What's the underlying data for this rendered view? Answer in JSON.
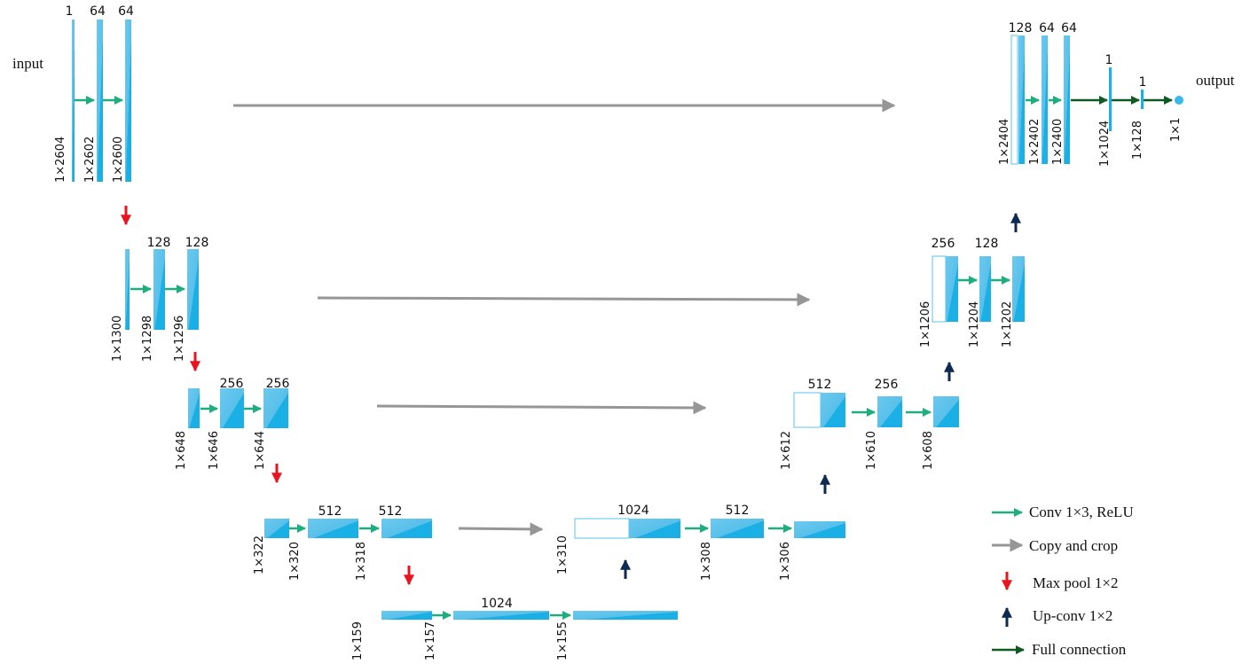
{
  "labels": {
    "input": "input",
    "output": "output"
  },
  "colors": {
    "block": "#5bc3ec",
    "block_dark": "#1ab0e6",
    "conv": "#1eae7e",
    "copy": "#969696",
    "pool": "#e8141e",
    "upconv": "#0e2a52",
    "full": "#0f5a23"
  },
  "legend": [
    {
      "kind": "conv",
      "label": "Conv 1×3, ReLU"
    },
    {
      "kind": "copy",
      "label": "Copy and crop"
    },
    {
      "kind": "pool",
      "label": "Max pool 1×2"
    },
    {
      "kind": "upconv",
      "label": "Up-conv 1×2"
    },
    {
      "kind": "full",
      "label": "Full connection"
    }
  ],
  "channels": {
    "e1a": "1",
    "e1b": "64",
    "e1c": "64",
    "e2b": "128",
    "e2c": "128",
    "e3b": "256",
    "e3c": "256",
    "e4b": "512",
    "e4c": "512",
    "bn": "1024",
    "d4": "1024",
    "d4b": "512",
    "d3": "512",
    "d3b": "256",
    "d2": "256",
    "d2b": "128",
    "d1": "128",
    "d1b": "64",
    "d1c": "64",
    "fc1": "1",
    "fc2": "1"
  },
  "sizes": {
    "e1a": "1×2604",
    "e1b": "1×2602",
    "e1c": "1×2600",
    "e2a": "1×1300",
    "e2b": "1×1298",
    "e2c": "1×1296",
    "e3a": "1×648",
    "e3b": "1×646",
    "e3c": "1×644",
    "e4a": "1×322",
    "e4b": "1×320",
    "e4c": "1×318",
    "bna": "1×159",
    "bnb": "1×157",
    "bnc": "1×155",
    "d4a": "1×310",
    "d4b": "1×308",
    "d4c": "1×306",
    "d3a": "1×612",
    "d3b": "1×610",
    "d3c": "1×608",
    "d2a": "1×1206",
    "d2b": "1×1204",
    "d2c": "1×1202",
    "d1a": "1×2404",
    "d1b": "1×2402",
    "d1c": "1×2400",
    "fc1": "1×1024",
    "fc2": "1×128",
    "out": "1×1"
  }
}
